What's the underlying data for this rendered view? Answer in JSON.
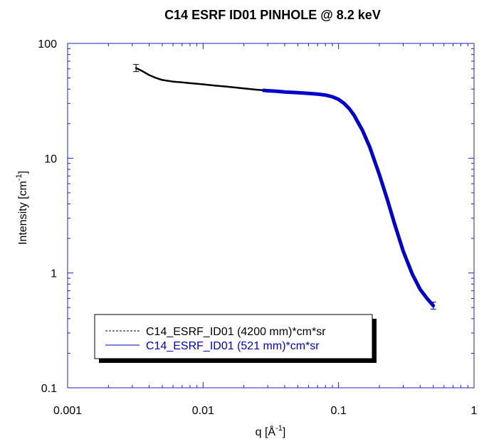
{
  "chart_data": {
    "type": "line",
    "title": "C14 ESRF ID01 PINHOLE @ 8.2 keV",
    "xlabel": "q [Å",
    "xlabel_sup": "-1",
    "xlabel_end": "]",
    "ylabel": "Intensity [cm",
    "ylabel_sup": "-1",
    "ylabel_end": "]",
    "xscale": "log",
    "yscale": "log",
    "xlim": [
      0.001,
      1
    ],
    "ylim": [
      0.1,
      100
    ],
    "x_tick_labels": [
      "0.001",
      "0.01",
      "0.1",
      "1"
    ],
    "y_tick_labels": [
      "0.1",
      "1",
      "10",
      "100"
    ],
    "grid": false,
    "legend_position": "bottom-left",
    "colors": {
      "series1": "#000000",
      "series2": "#0000cc",
      "axis": "#2020c0"
    },
    "series": [
      {
        "name": "C14_ESRF_ID01 (4200 mm)*cm*sr",
        "line_style": "dashed",
        "x": [
          0.0032,
          0.0035,
          0.004,
          0.0045,
          0.005,
          0.006,
          0.007,
          0.008,
          0.01,
          0.012,
          0.015,
          0.02,
          0.025,
          0.03,
          0.04,
          0.05,
          0.06,
          0.065
        ],
        "y": [
          61,
          58,
          53,
          50,
          48,
          46.5,
          45.8,
          45,
          44,
          43,
          42,
          40.5,
          39.5,
          38.8,
          38,
          37.2,
          36.6,
          36.4
        ]
      },
      {
        "name": "C14_ESRF_ID01 (521 mm)*cm*sr",
        "line_style": "solid",
        "x": [
          0.028,
          0.03,
          0.035,
          0.04,
          0.05,
          0.06,
          0.07,
          0.08,
          0.09,
          0.1,
          0.11,
          0.12,
          0.13,
          0.15,
          0.17,
          0.2,
          0.23,
          0.26,
          0.3,
          0.35,
          0.4,
          0.45,
          0.5
        ],
        "y": [
          39,
          38.7,
          38.3,
          37.8,
          37.2,
          36.7,
          36.2,
          35.5,
          34.3,
          32.5,
          30,
          27,
          23.7,
          17.5,
          12.5,
          7.2,
          4.3,
          2.65,
          1.55,
          0.98,
          0.72,
          0.6,
          0.52
        ]
      }
    ]
  }
}
